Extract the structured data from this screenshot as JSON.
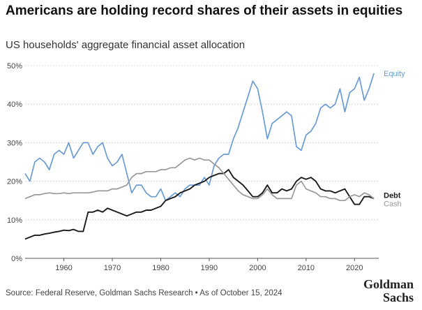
{
  "title": "Americans are holding record shares of their assets in equities",
  "subtitle": "US households' aggregate financial asset allocation",
  "source": "Source: Federal Reserve, Goldman Sachs Research • As of October 15, 2024",
  "logo": {
    "line1": "Goldman",
    "line2": "Sachs"
  },
  "chart_data": {
    "type": "line",
    "title": "Americans are holding record shares of their assets in equities",
    "subtitle": "US households' aggregate financial asset allocation",
    "xlabel": "",
    "ylabel": "",
    "xlim": [
      1952,
      2025
    ],
    "ylim": [
      0,
      50
    ],
    "x_ticks": [
      1960,
      1970,
      1980,
      1990,
      2000,
      2010,
      2020
    ],
    "y_ticks": [
      0,
      10,
      20,
      30,
      40,
      50
    ],
    "y_tick_labels": [
      "0%",
      "10%",
      "20%",
      "30%",
      "40%",
      "50%"
    ],
    "grid": "horizontal",
    "legend": "inline-right",
    "series": [
      {
        "name": "Equity",
        "color": "#6b9bd2",
        "points": [
          [
            1952,
            22
          ],
          [
            1953,
            20
          ],
          [
            1954,
            25
          ],
          [
            1955,
            26
          ],
          [
            1956,
            25
          ],
          [
            1957,
            23
          ],
          [
            1958,
            27
          ],
          [
            1959,
            28
          ],
          [
            1960,
            27
          ],
          [
            1961,
            30
          ],
          [
            1962,
            26
          ],
          [
            1963,
            28
          ],
          [
            1964,
            30
          ],
          [
            1965,
            30
          ],
          [
            1966,
            27
          ],
          [
            1967,
            29
          ],
          [
            1968,
            30
          ],
          [
            1969,
            26
          ],
          [
            1970,
            24
          ],
          [
            1971,
            25
          ],
          [
            1972,
            27
          ],
          [
            1973,
            22
          ],
          [
            1974,
            17
          ],
          [
            1975,
            19
          ],
          [
            1976,
            19
          ],
          [
            1977,
            17
          ],
          [
            1978,
            16
          ],
          [
            1979,
            16
          ],
          [
            1980,
            18
          ],
          [
            1981,
            15
          ],
          [
            1982,
            16
          ],
          [
            1983,
            17
          ],
          [
            1984,
            16
          ],
          [
            1985,
            18
          ],
          [
            1986,
            19
          ],
          [
            1987,
            19
          ],
          [
            1988,
            19
          ],
          [
            1989,
            21
          ],
          [
            1990,
            19
          ],
          [
            1991,
            24
          ],
          [
            1992,
            26
          ],
          [
            1993,
            27
          ],
          [
            1994,
            27
          ],
          [
            1995,
            31
          ],
          [
            1996,
            34
          ],
          [
            1997,
            38
          ],
          [
            1998,
            42
          ],
          [
            1999,
            46
          ],
          [
            2000,
            44
          ],
          [
            2001,
            38
          ],
          [
            2002,
            31
          ],
          [
            2003,
            35
          ],
          [
            2004,
            36
          ],
          [
            2005,
            37
          ],
          [
            2006,
            38
          ],
          [
            2007,
            37
          ],
          [
            2008,
            29
          ],
          [
            2009,
            28
          ],
          [
            2010,
            32
          ],
          [
            2011,
            33
          ],
          [
            2012,
            35
          ],
          [
            2013,
            39
          ],
          [
            2014,
            40
          ],
          [
            2015,
            39
          ],
          [
            2016,
            40
          ],
          [
            2017,
            44
          ],
          [
            2018,
            38
          ],
          [
            2019,
            43
          ],
          [
            2020,
            44
          ],
          [
            2021,
            47
          ],
          [
            2022,
            41
          ],
          [
            2023,
            44
          ],
          [
            2024,
            48
          ]
        ]
      },
      {
        "name": "Debt",
        "color": "#1a1a1a",
        "points": [
          [
            1952,
            5
          ],
          [
            1953,
            5.5
          ],
          [
            1954,
            6
          ],
          [
            1955,
            6
          ],
          [
            1956,
            6.3
          ],
          [
            1957,
            6.5
          ],
          [
            1958,
            6.8
          ],
          [
            1959,
            7
          ],
          [
            1960,
            7.3
          ],
          [
            1961,
            7.2
          ],
          [
            1962,
            7.5
          ],
          [
            1963,
            7
          ],
          [
            1964,
            7
          ],
          [
            1965,
            12
          ],
          [
            1966,
            12
          ],
          [
            1967,
            12.5
          ],
          [
            1968,
            12
          ],
          [
            1969,
            13
          ],
          [
            1970,
            12.5
          ],
          [
            1971,
            12
          ],
          [
            1972,
            11.5
          ],
          [
            1973,
            11
          ],
          [
            1974,
            11.5
          ],
          [
            1975,
            12
          ],
          [
            1976,
            12
          ],
          [
            1977,
            12.5
          ],
          [
            1978,
            12.5
          ],
          [
            1979,
            13
          ],
          [
            1980,
            13.5
          ],
          [
            1981,
            15
          ],
          [
            1982,
            15.5
          ],
          [
            1983,
            16
          ],
          [
            1984,
            17
          ],
          [
            1985,
            17.5
          ],
          [
            1986,
            18
          ],
          [
            1987,
            19
          ],
          [
            1988,
            19.5
          ],
          [
            1989,
            20
          ],
          [
            1990,
            21
          ],
          [
            1991,
            21.5
          ],
          [
            1992,
            22
          ],
          [
            1993,
            22
          ],
          [
            1994,
            23
          ],
          [
            1995,
            21
          ],
          [
            1996,
            20
          ],
          [
            1997,
            19
          ],
          [
            1998,
            17.5
          ],
          [
            1999,
            16
          ],
          [
            2000,
            16
          ],
          [
            2001,
            17
          ],
          [
            2002,
            19
          ],
          [
            2003,
            17
          ],
          [
            2004,
            17
          ],
          [
            2005,
            18
          ],
          [
            2006,
            17.5
          ],
          [
            2007,
            18
          ],
          [
            2008,
            20
          ],
          [
            2009,
            21
          ],
          [
            2010,
            20.5
          ],
          [
            2011,
            21
          ],
          [
            2012,
            20
          ],
          [
            2013,
            18
          ],
          [
            2014,
            17.5
          ],
          [
            2015,
            17.5
          ],
          [
            2016,
            17
          ],
          [
            2017,
            17.5
          ],
          [
            2018,
            18
          ],
          [
            2019,
            16
          ],
          [
            2020,
            14
          ],
          [
            2021,
            14
          ],
          [
            2022,
            16
          ],
          [
            2023,
            16
          ],
          [
            2024,
            15.5
          ]
        ]
      },
      {
        "name": "Cash",
        "color": "#999999",
        "points": [
          [
            1952,
            15.5
          ],
          [
            1953,
            16
          ],
          [
            1954,
            16.5
          ],
          [
            1955,
            16.5
          ],
          [
            1956,
            16.8
          ],
          [
            1957,
            17
          ],
          [
            1958,
            16.8
          ],
          [
            1959,
            16.8
          ],
          [
            1960,
            17
          ],
          [
            1961,
            16.8
          ],
          [
            1962,
            17
          ],
          [
            1963,
            17
          ],
          [
            1964,
            17
          ],
          [
            1965,
            17
          ],
          [
            1966,
            17.2
          ],
          [
            1967,
            17.5
          ],
          [
            1968,
            17.5
          ],
          [
            1969,
            17.5
          ],
          [
            1970,
            18
          ],
          [
            1971,
            18
          ],
          [
            1972,
            18.5
          ],
          [
            1973,
            19
          ],
          [
            1974,
            21
          ],
          [
            1975,
            22
          ],
          [
            1976,
            22
          ],
          [
            1977,
            22.5
          ],
          [
            1978,
            22.5
          ],
          [
            1979,
            22.5
          ],
          [
            1980,
            23
          ],
          [
            1981,
            23
          ],
          [
            1982,
            23.5
          ],
          [
            1983,
            23.5
          ],
          [
            1984,
            24.5
          ],
          [
            1985,
            25.5
          ],
          [
            1986,
            26
          ],
          [
            1987,
            25.5
          ],
          [
            1988,
            26
          ],
          [
            1989,
            25.5
          ],
          [
            1990,
            25.5
          ],
          [
            1991,
            24.5
          ],
          [
            1992,
            23.5
          ],
          [
            1993,
            22
          ],
          [
            1994,
            20.5
          ],
          [
            1995,
            19
          ],
          [
            1996,
            17.5
          ],
          [
            1997,
            16.5
          ],
          [
            1998,
            16
          ],
          [
            1999,
            15.5
          ],
          [
            2000,
            15.5
          ],
          [
            2001,
            16.5
          ],
          [
            2002,
            18
          ],
          [
            2003,
            16.5
          ],
          [
            2004,
            15.5
          ],
          [
            2005,
            15.5
          ],
          [
            2006,
            15.5
          ],
          [
            2007,
            15.5
          ],
          [
            2008,
            19
          ],
          [
            2009,
            20
          ],
          [
            2010,
            18
          ],
          [
            2011,
            17.5
          ],
          [
            2012,
            17
          ],
          [
            2013,
            16
          ],
          [
            2014,
            16
          ],
          [
            2015,
            15.5
          ],
          [
            2016,
            15.5
          ],
          [
            2017,
            15
          ],
          [
            2018,
            15
          ],
          [
            2019,
            16
          ],
          [
            2020,
            16.5
          ],
          [
            2021,
            16
          ],
          [
            2022,
            17
          ],
          [
            2023,
            16.5
          ],
          [
            2024,
            15.5
          ]
        ]
      }
    ]
  }
}
